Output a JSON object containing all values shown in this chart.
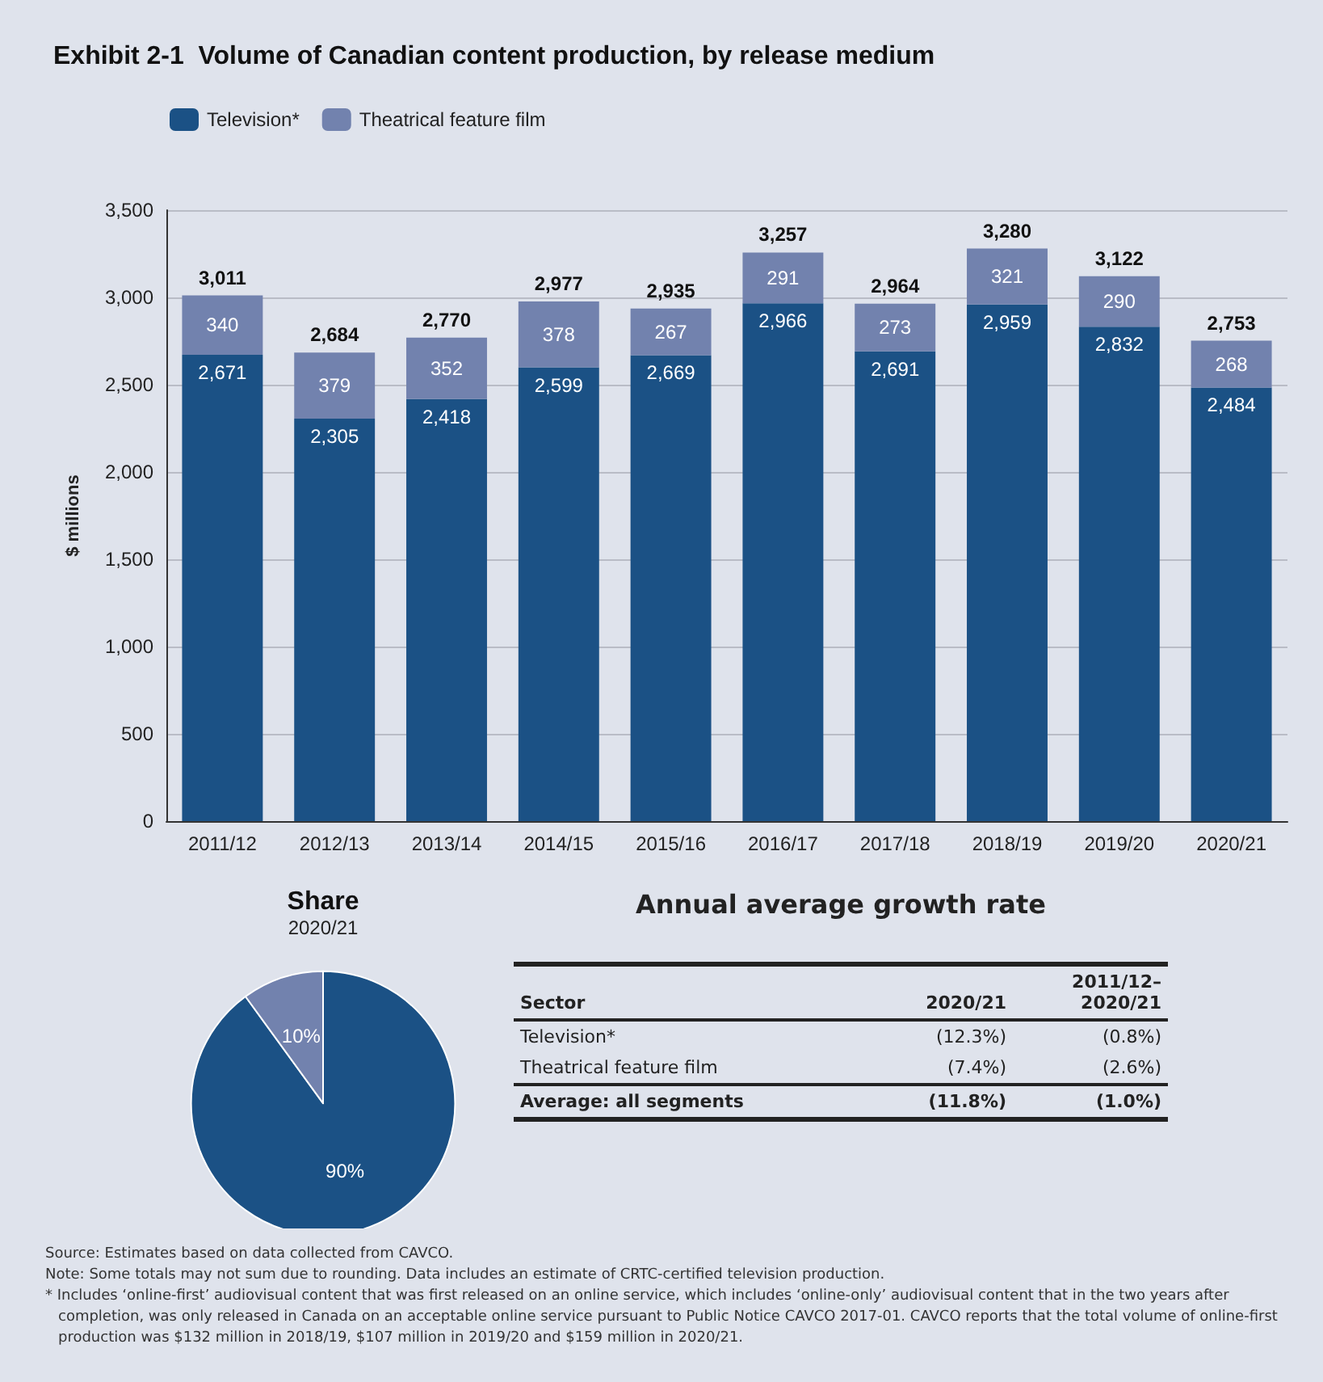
{
  "chart_data": [
    {
      "type": "bar",
      "title": "Exhibit 2-1  Volume of Canadian content production, by release medium",
      "ylabel": "$ millions",
      "stacked": true,
      "grid": "y",
      "legend": "top left",
      "categories": [
        "2011/12",
        "2012/13",
        "2013/14",
        "2014/15",
        "2015/16",
        "2016/17",
        "2017/18",
        "2018/19",
        "2019/20",
        "2020/21"
      ],
      "series": [
        {
          "name": "Television*",
          "color": "#1b5185",
          "values": [
            2671,
            2305,
            2418,
            2599,
            2669,
            2966,
            2691,
            2959,
            2832,
            2484
          ],
          "value_labels": [
            "2,671",
            "2,305",
            "2,418",
            "2,599",
            "2,669",
            "2,966",
            "2,691",
            "2,959",
            "2,832",
            "2,484"
          ]
        },
        {
          "name": "Theatrical feature film",
          "color": "#7282ae",
          "values": [
            340,
            379,
            352,
            378,
            267,
            291,
            273,
            321,
            290,
            268
          ],
          "value_labels": [
            "340",
            "379",
            "352",
            "378",
            "267",
            "291",
            "273",
            "321",
            "290",
            "268"
          ]
        }
      ],
      "totals": [
        "3,011",
        "2,684",
        "2,770",
        "2,977",
        "2,935",
        "3,257",
        "2,964",
        "3,280",
        "3,122",
        "2,753"
      ],
      "ylim": [
        0,
        3500
      ],
      "yticks": [
        0,
        500,
        {
          "value": 1000,
          "label": "1,000"
        },
        {
          "value": 1500,
          "label": "1,500"
        },
        {
          "value": 2000,
          "label": "2,000"
        },
        {
          "value": 2500,
          "label": "2,500"
        },
        {
          "value": 3000,
          "label": "3,000"
        },
        {
          "value": 3500,
          "label": "3,500"
        }
      ],
      "annotations": [
        "Source: Estimates based on data collected from CAVCO.",
        "Note: Some totals may not sum due to rounding. Data includes an estimate of CRTC-certified television production.",
        "* Includes ‘online-first’ audiovisual content that was first released on an online service, which includes ‘online-only’ audiovisual content that in the two years after completion, was only released in Canada on an acceptable online service pursuant to Public Notice CAVCO 2017-01. CAVCO reports that the total volume of online-first production was $132 million in 2018/19, $107 million in 2019/20 and $159 million in 2020/21."
      ]
    },
    {
      "type": "pie",
      "title": "Share",
      "subtitle": "2020/21",
      "categories": [
        null,
        null
      ],
      "values": [
        90,
        10
      ],
      "colors": [
        "#1b5185",
        "#7282ae"
      ],
      "value_labels": [
        "90%",
        "10%"
      ]
    },
    {
      "type": "other",
      "title": "Annual average growth rate",
      "xlabel": "Sector",
      "categories": [
        "Television*",
        "Theatrical feature film",
        "Average: all segments"
      ],
      "series": [
        {
          "name": "2020/21",
          "values": [
            -12.3,
            -7.4,
            -11.8
          ],
          "value_labels": [
            "(12.3%)",
            "(7.4%)",
            "(11.8%)"
          ]
        },
        {
          "name": "2011/12–\n2020/21",
          "values": [
            -0.8,
            -2.6,
            -1.0
          ],
          "value_labels": [
            "(0.8%)",
            "(2.6%)",
            "(1.0%)"
          ]
        }
      ]
    }
  ]
}
